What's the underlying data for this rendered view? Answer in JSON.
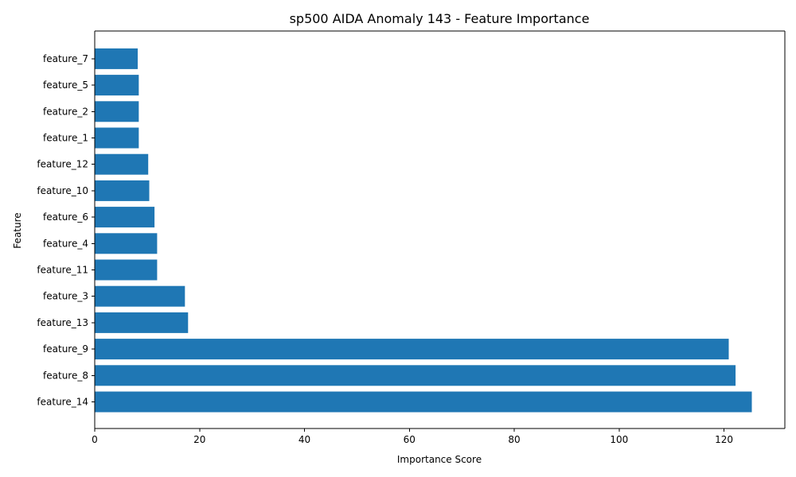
{
  "chart_data": {
    "type": "bar",
    "orientation": "horizontal",
    "title": "sp500 AIDA Anomaly 143 - Feature Importance",
    "xlabel": "Importance Score",
    "ylabel": "Feature",
    "categories": [
      "feature_14",
      "feature_8",
      "feature_9",
      "feature_13",
      "feature_3",
      "feature_11",
      "feature_4",
      "feature_6",
      "feature_10",
      "feature_12",
      "feature_1",
      "feature_2",
      "feature_5",
      "feature_7"
    ],
    "values": [
      125.3,
      122.2,
      120.9,
      17.8,
      17.2,
      11.9,
      11.9,
      11.4,
      10.4,
      10.2,
      8.4,
      8.4,
      8.4,
      8.2
    ],
    "xlim": [
      0,
      131.6
    ],
    "xticks": [
      0,
      20,
      40,
      60,
      80,
      100,
      120
    ],
    "xtick_labels": [
      "0",
      "20",
      "40",
      "60",
      "80",
      "100",
      "120"
    ],
    "grid": false,
    "bar_color": "#1f77b4"
  }
}
